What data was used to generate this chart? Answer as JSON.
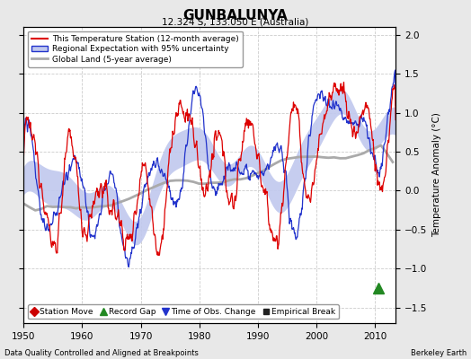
{
  "title": "GUNBALUNYA",
  "subtitle": "12.324 S, 133.050 E (Australia)",
  "ylabel": "Temperature Anomaly (°C)",
  "xlabel_left": "Data Quality Controlled and Aligned at Breakpoints",
  "xlabel_right": "Berkeley Earth",
  "ylim": [
    -1.7,
    2.1
  ],
  "xlim": [
    1950,
    2013.5
  ],
  "yticks": [
    -1.5,
    -1.0,
    -0.5,
    0.0,
    0.5,
    1.0,
    1.5,
    2.0
  ],
  "xticks": [
    1950,
    1960,
    1970,
    1980,
    1990,
    2000,
    2010
  ],
  "background_color": "#e8e8e8",
  "plot_bg_color": "#ffffff",
  "grid_color": "#cccccc",
  "red_line_color": "#dd0000",
  "blue_line_color": "#2233cc",
  "blue_fill_color": "#c0c8ee",
  "gray_line_color": "#aaaaaa",
  "legend_entries": [
    "This Temperature Station (12-month average)",
    "Regional Expectation with 95% uncertainty",
    "Global Land (5-year average)"
  ],
  "marker_legend": [
    {
      "label": "Station Move",
      "color": "#cc0000",
      "marker": "D"
    },
    {
      "label": "Record Gap",
      "color": "#228822",
      "marker": "^"
    },
    {
      "label": "Time of Obs. Change",
      "color": "#2233cc",
      "marker": "v"
    },
    {
      "label": "Empirical Break",
      "color": "#222222",
      "marker": "s"
    }
  ],
  "record_gap_x": 2010.5,
  "seed": 12345
}
